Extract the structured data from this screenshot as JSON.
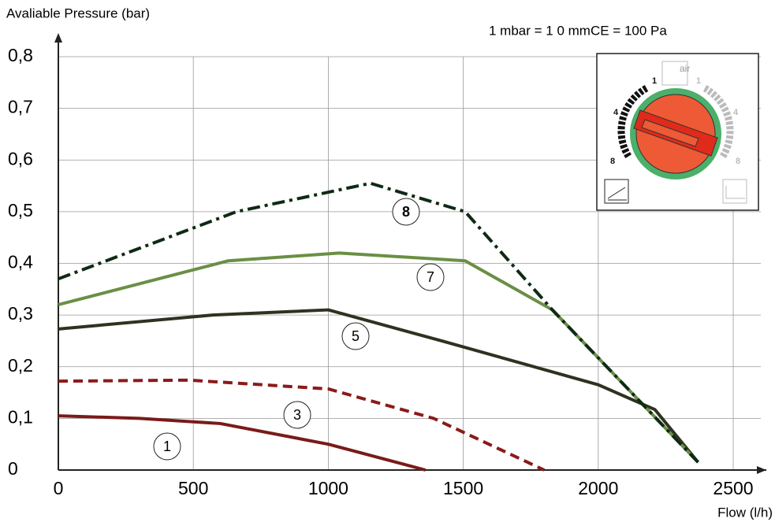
{
  "chart_data": {
    "type": "line",
    "y_label": "Avaliable Pressure (bar)",
    "x_label": "Flow (l/h)",
    "annotation": "1 mbar = 1 0 mmCE =  100  Pa",
    "xlim": [
      0,
      2500
    ],
    "xticks": [
      0,
      500,
      1000,
      1500,
      2000,
      2500
    ],
    "ylim": [
      0,
      0.8
    ],
    "yticks": [
      {
        "value": 0,
        "label": "0"
      },
      {
        "value": 0.1,
        "label": "0,1"
      },
      {
        "value": 0.2,
        "label": "0,2"
      },
      {
        "value": 0.3,
        "label": "0,3"
      },
      {
        "value": 0.4,
        "label": "0,4"
      },
      {
        "value": 0.5,
        "label": "0,5"
      },
      {
        "value": 0.6,
        "label": "0,6"
      },
      {
        "value": 0.7,
        "label": "0,7"
      },
      {
        "value": 0.8,
        "label": "0,8"
      }
    ],
    "grid": true,
    "series": [
      {
        "name": "1",
        "color": "#7a1a1a",
        "dash": "solid",
        "x": [
          0,
          300,
          600,
          1000,
          1360
        ],
        "values": [
          0.105,
          0.1,
          0.09,
          0.05,
          0
        ]
      },
      {
        "name": "3",
        "color": "#8b1a1a",
        "dash": "dashed",
        "x": [
          0,
          485,
          1000,
          1390,
          1800
        ],
        "values": [
          0.172,
          0.174,
          0.157,
          0.1,
          0
        ]
      },
      {
        "name": "5",
        "color": "#2e3320",
        "dash": "solid",
        "x": [
          0,
          572,
          1000,
          1420,
          2000,
          2210,
          2370
        ],
        "values": [
          0.273,
          0.3,
          0.31,
          0.25,
          0.165,
          0.117,
          0.015
        ]
      },
      {
        "name": "7",
        "color": "#6a8f45",
        "dash": "solid",
        "x": [
          0,
          630,
          1040,
          1507,
          1830,
          2370
        ],
        "values": [
          0.32,
          0.405,
          0.42,
          0.405,
          0.31,
          0.015
        ]
      },
      {
        "name": "8",
        "color": "#0f2a14",
        "dash": "dashdot",
        "x": [
          0,
          660,
          1156,
          1507,
          1830,
          2370
        ],
        "values": [
          0.37,
          0.5,
          0.555,
          0.5,
          0.31,
          0.015
        ]
      }
    ],
    "inset": {
      "left_labels": [
        "1",
        "4",
        "8"
      ],
      "right_labels": [
        "1",
        "4",
        "8"
      ],
      "icon": "air"
    }
  }
}
